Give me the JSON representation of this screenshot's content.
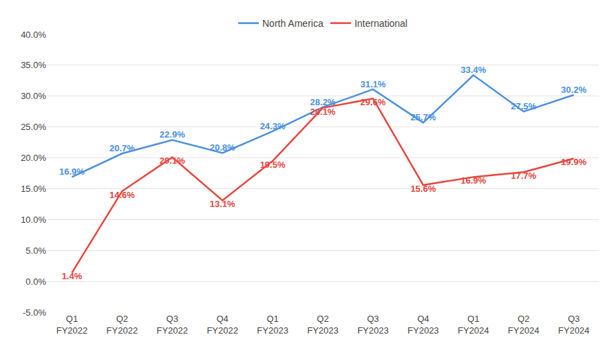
{
  "chart_data": {
    "type": "line",
    "categories": [
      "Q1 FY2022",
      "Q2 FY2022",
      "Q3 FY2022",
      "Q4 FY2022",
      "Q1 FY2023",
      "Q2 FY2023",
      "Q3 FY2023",
      "Q4 FY2023",
      "Q1 FY2024",
      "Q2 FY2024",
      "Q3 FY2024"
    ],
    "series": [
      {
        "name": "North America",
        "color": "#4a90e2",
        "values": [
          16.9,
          20.7,
          22.9,
          20.8,
          24.3,
          28.2,
          31.1,
          25.7,
          33.4,
          27.5,
          30.2
        ],
        "value_labels": [
          "16.9%",
          "20.7%",
          "22.9%",
          "20.8%",
          "24.3%",
          "28.2%",
          "31.1%",
          "25.7%",
          "33.4%",
          "27.5%",
          "30.2%"
        ]
      },
      {
        "name": "International",
        "color": "#e8453c",
        "values": [
          1.4,
          14.6,
          20.1,
          13.1,
          19.5,
          28.1,
          29.6,
          15.6,
          16.9,
          17.7,
          19.9
        ],
        "value_labels": [
          "1.4%",
          "14.6%",
          "20.1%",
          "13.1%",
          "19.5%",
          "28.1%",
          "29.6%",
          "15.6%",
          "16.9%",
          "17.7%",
          "19.9%"
        ]
      }
    ],
    "ylim": [
      -5,
      40
    ],
    "yticks": [
      {
        "value": -5,
        "label": "-5.0%"
      },
      {
        "value": 0,
        "label": "0.0%"
      },
      {
        "value": 5,
        "label": "5.0%"
      },
      {
        "value": 10,
        "label": "10.0%"
      },
      {
        "value": 15,
        "label": "15.0%"
      },
      {
        "value": 20,
        "label": "20.0%"
      },
      {
        "value": 25,
        "label": "25.0%"
      },
      {
        "value": 30,
        "label": "30.0%"
      },
      {
        "value": 35,
        "label": "35.0%"
      },
      {
        "value": 40,
        "label": "40.0%"
      }
    ],
    "grid": true,
    "legend": "top",
    "data_labels": true
  }
}
